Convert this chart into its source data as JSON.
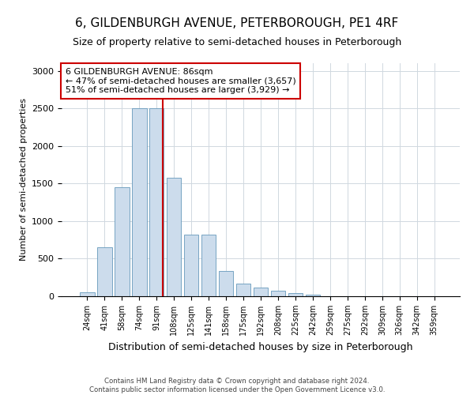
{
  "title": "6, GILDENBURGH AVENUE, PETERBOROUGH, PE1 4RF",
  "subtitle": "Size of property relative to semi-detached houses in Peterborough",
  "xlabel": "Distribution of semi-detached houses by size in Peterborough",
  "ylabel": "Number of semi-detached properties",
  "categories": [
    "24sqm",
    "41sqm",
    "58sqm",
    "74sqm",
    "91sqm",
    "108sqm",
    "125sqm",
    "141sqm",
    "158sqm",
    "175sqm",
    "192sqm",
    "208sqm",
    "225sqm",
    "242sqm",
    "259sqm",
    "275sqm",
    "292sqm",
    "309sqm",
    "326sqm",
    "342sqm",
    "359sqm"
  ],
  "values": [
    50,
    650,
    1450,
    2500,
    2500,
    1580,
    820,
    820,
    340,
    170,
    120,
    70,
    40,
    20,
    5,
    5,
    3,
    2,
    2,
    2,
    2
  ],
  "bar_color": "#ccdcec",
  "bar_edge_color": "#6699bb",
  "vline_color": "#cc0000",
  "vline_pos": 4.35,
  "annotation_text": "6 GILDENBURGH AVENUE: 86sqm\n← 47% of semi-detached houses are smaller (3,657)\n51% of semi-detached houses are larger (3,929) →",
  "annotation_box_color": "#ffffff",
  "annotation_box_edge": "#cc0000",
  "ylim": [
    0,
    3100
  ],
  "yticks": [
    0,
    500,
    1000,
    1500,
    2000,
    2500,
    3000
  ],
  "footnote1": "Contains HM Land Registry data © Crown copyright and database right 2024.",
  "footnote2": "Contains public sector information licensed under the Open Government Licence v3.0.",
  "title_fontsize": 11,
  "subtitle_fontsize": 9,
  "xlabel_fontsize": 9,
  "ylabel_fontsize": 8,
  "bar_width": 0.85,
  "grid_color": "#d0d8e0"
}
